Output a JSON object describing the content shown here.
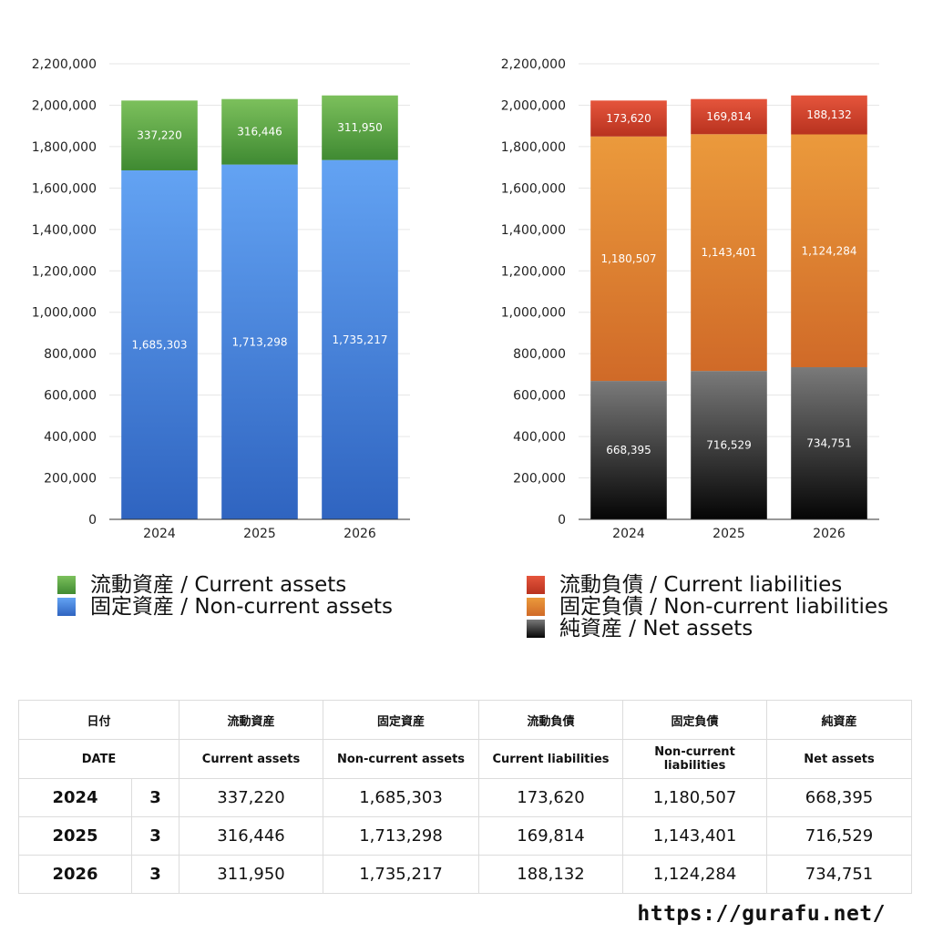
{
  "chart_data": [
    {
      "type": "bar",
      "stacked": true,
      "categories": [
        "2024",
        "2025",
        "2026"
      ],
      "ylim": [
        0,
        2200000
      ],
      "yticks": [
        0,
        200000,
        400000,
        600000,
        800000,
        1000000,
        1200000,
        1400000,
        1600000,
        1800000,
        2000000,
        2200000
      ],
      "ytick_labels": [
        "0",
        "200,000",
        "400,000",
        "600,000",
        "800,000",
        "1,000,000",
        "1,200,000",
        "1,400,000",
        "1,600,000",
        "1,800,000",
        "2,000,000",
        "2,200,000"
      ],
      "grid": true,
      "legend_position": "bottom",
      "series": [
        {
          "name": "固定資産 / Non-current assets",
          "values": [
            1685303,
            1713298,
            1735217
          ],
          "labels": [
            "1,685,303",
            "1,713,298",
            "1,735,217"
          ],
          "color_top": "#63a3f3",
          "color_bottom": "#2f64c0"
        },
        {
          "name": "流動資産 / Current assets",
          "values": [
            337220,
            316446,
            311950
          ],
          "labels": [
            "337,220",
            "316,446",
            "311,950"
          ],
          "color_top": "#7cc05c",
          "color_bottom": "#3f8a32"
        }
      ],
      "legend": [
        {
          "label": "流動資産 / Current assets",
          "color_top": "#7cc05c",
          "color_bottom": "#3f8a32"
        },
        {
          "label": "固定資産 / Non-current assets",
          "color_top": "#63a3f3",
          "color_bottom": "#2f64c0"
        }
      ]
    },
    {
      "type": "bar",
      "stacked": true,
      "categories": [
        "2024",
        "2025",
        "2026"
      ],
      "ylim": [
        0,
        2200000
      ],
      "yticks": [
        0,
        200000,
        400000,
        600000,
        800000,
        1000000,
        1200000,
        1400000,
        1600000,
        1800000,
        2000000,
        2200000
      ],
      "ytick_labels": [
        "0",
        "200,000",
        "400,000",
        "600,000",
        "800,000",
        "1,000,000",
        "1,200,000",
        "1,400,000",
        "1,600,000",
        "1,800,000",
        "2,000,000",
        "2,200,000"
      ],
      "grid": true,
      "legend_position": "bottom",
      "series": [
        {
          "name": "純資産 / Net assets",
          "values": [
            668395,
            716529,
            734751
          ],
          "labels": [
            "668,395",
            "716,529",
            "734,751"
          ],
          "color_top": "#7a7a7a",
          "color_bottom": "#050505"
        },
        {
          "name": "固定負債 / Non-current liabilities",
          "values": [
            1180507,
            1143401,
            1124284
          ],
          "labels": [
            "1,180,507",
            "1,143,401",
            "1,124,284"
          ],
          "color_top": "#eb9a3c",
          "color_bottom": "#d06a28"
        },
        {
          "name": "流動負債 / Current liabilities",
          "values": [
            173620,
            169814,
            188132
          ],
          "labels": [
            "173,620",
            "169,814",
            "188,132"
          ],
          "color_top": "#e5553c",
          "color_bottom": "#b8321f"
        }
      ],
      "legend": [
        {
          "label": "流動負債 / Current liabilities",
          "color_top": "#e5553c",
          "color_bottom": "#b8321f"
        },
        {
          "label": "固定負債 / Non-current liabilities",
          "color_top": "#eb9a3c",
          "color_bottom": "#d06a28"
        },
        {
          "label": "純資産 / Net assets",
          "color_top": "#7a7a7a",
          "color_bottom": "#050505"
        }
      ]
    }
  ],
  "table": {
    "headers": [
      [
        "日付",
        "",
        "流動資産",
        "固定資産",
        "流動負債",
        "固定負債",
        "純資産"
      ],
      [
        "DATE",
        "",
        "Current assets",
        "Non-current assets",
        "Current liabilities",
        "Non-current liabilities",
        "Net assets"
      ]
    ],
    "rows": [
      [
        "2024",
        "3",
        "337,220",
        "1,685,303",
        "173,620",
        "1,180,507",
        "668,395"
      ],
      [
        "2025",
        "3",
        "316,446",
        "1,713,298",
        "169,814",
        "1,143,401",
        "716,529"
      ],
      [
        "2026",
        "3",
        "311,950",
        "1,735,217",
        "188,132",
        "1,124,284",
        "734,751"
      ]
    ]
  },
  "footer": {
    "site": "https://gurafu.net/"
  }
}
